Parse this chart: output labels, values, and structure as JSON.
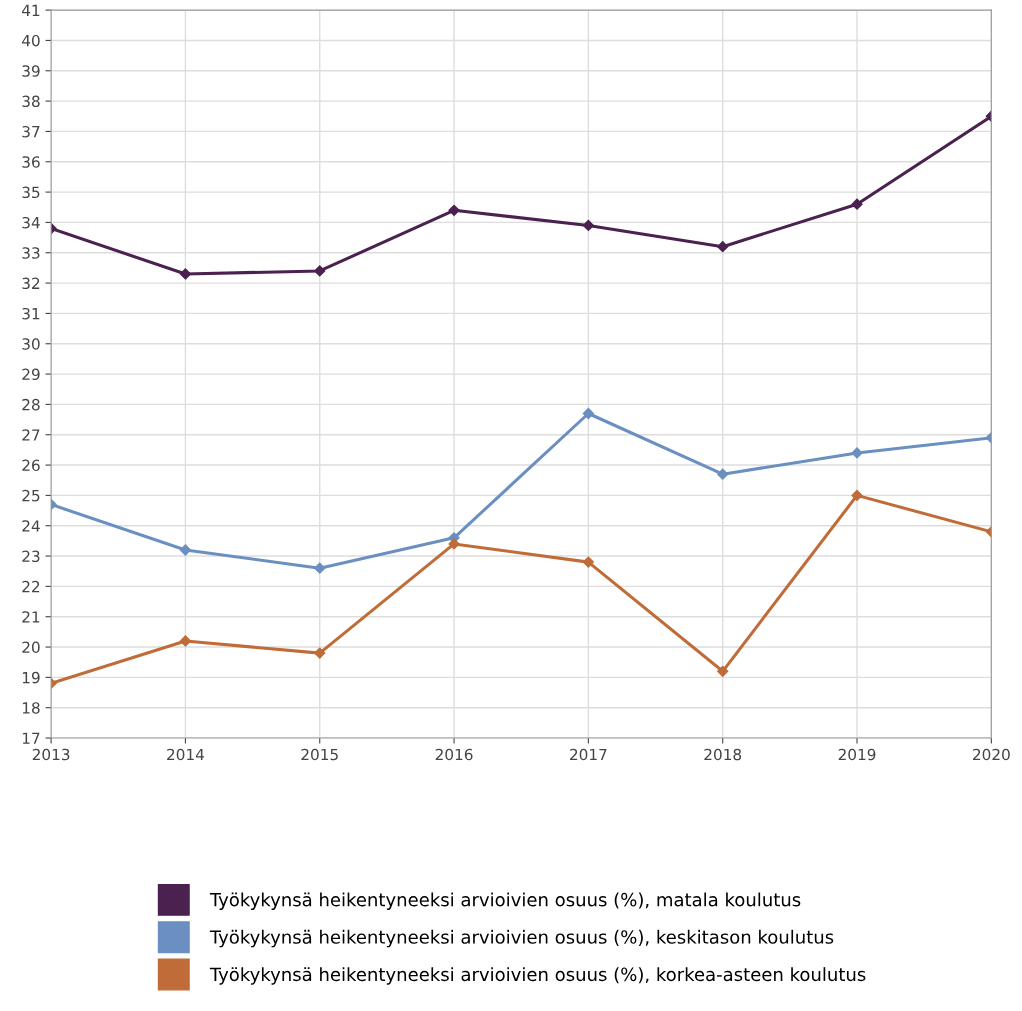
{
  "chart_data": {
    "type": "line",
    "x": [
      2013,
      2014,
      2015,
      2016,
      2017,
      2018,
      2019,
      2020
    ],
    "xlim": [
      2013,
      2020
    ],
    "xticks": [
      2013,
      2014,
      2015,
      2016,
      2017,
      2018,
      2019,
      2020
    ],
    "ylim": [
      17,
      41
    ],
    "yticks": [
      17,
      18,
      19,
      20,
      21,
      22,
      23,
      24,
      25,
      26,
      27,
      28,
      29,
      30,
      31,
      32,
      33,
      34,
      35,
      36,
      37,
      38,
      39,
      40,
      41
    ],
    "grid": true,
    "legend": "bottom",
    "marker": "diamond",
    "line_style": "solid",
    "series": [
      {
        "name": "Työkykynsä heikentyneeksi arvioivien osuus (%), matala koulutus",
        "color": "#4b2150",
        "values": [
          33.8,
          32.3,
          32.4,
          34.4,
          33.9,
          33.2,
          34.6,
          37.5
        ]
      },
      {
        "name": "Työkykynsä heikentyneeksi arvioivien osuus (%), keskitason koulutus",
        "color": "#6a8fc0",
        "values": [
          24.7,
          23.2,
          22.6,
          23.6,
          27.7,
          25.7,
          26.4,
          26.9
        ]
      },
      {
        "name": "Työkykynsä heikentyneeksi arvioivien osuus (%), korkea-asteen koulutus",
        "color": "#c06c38",
        "values": [
          18.8,
          20.2,
          19.8,
          23.4,
          22.8,
          19.2,
          25.0,
          23.8
        ]
      }
    ]
  }
}
